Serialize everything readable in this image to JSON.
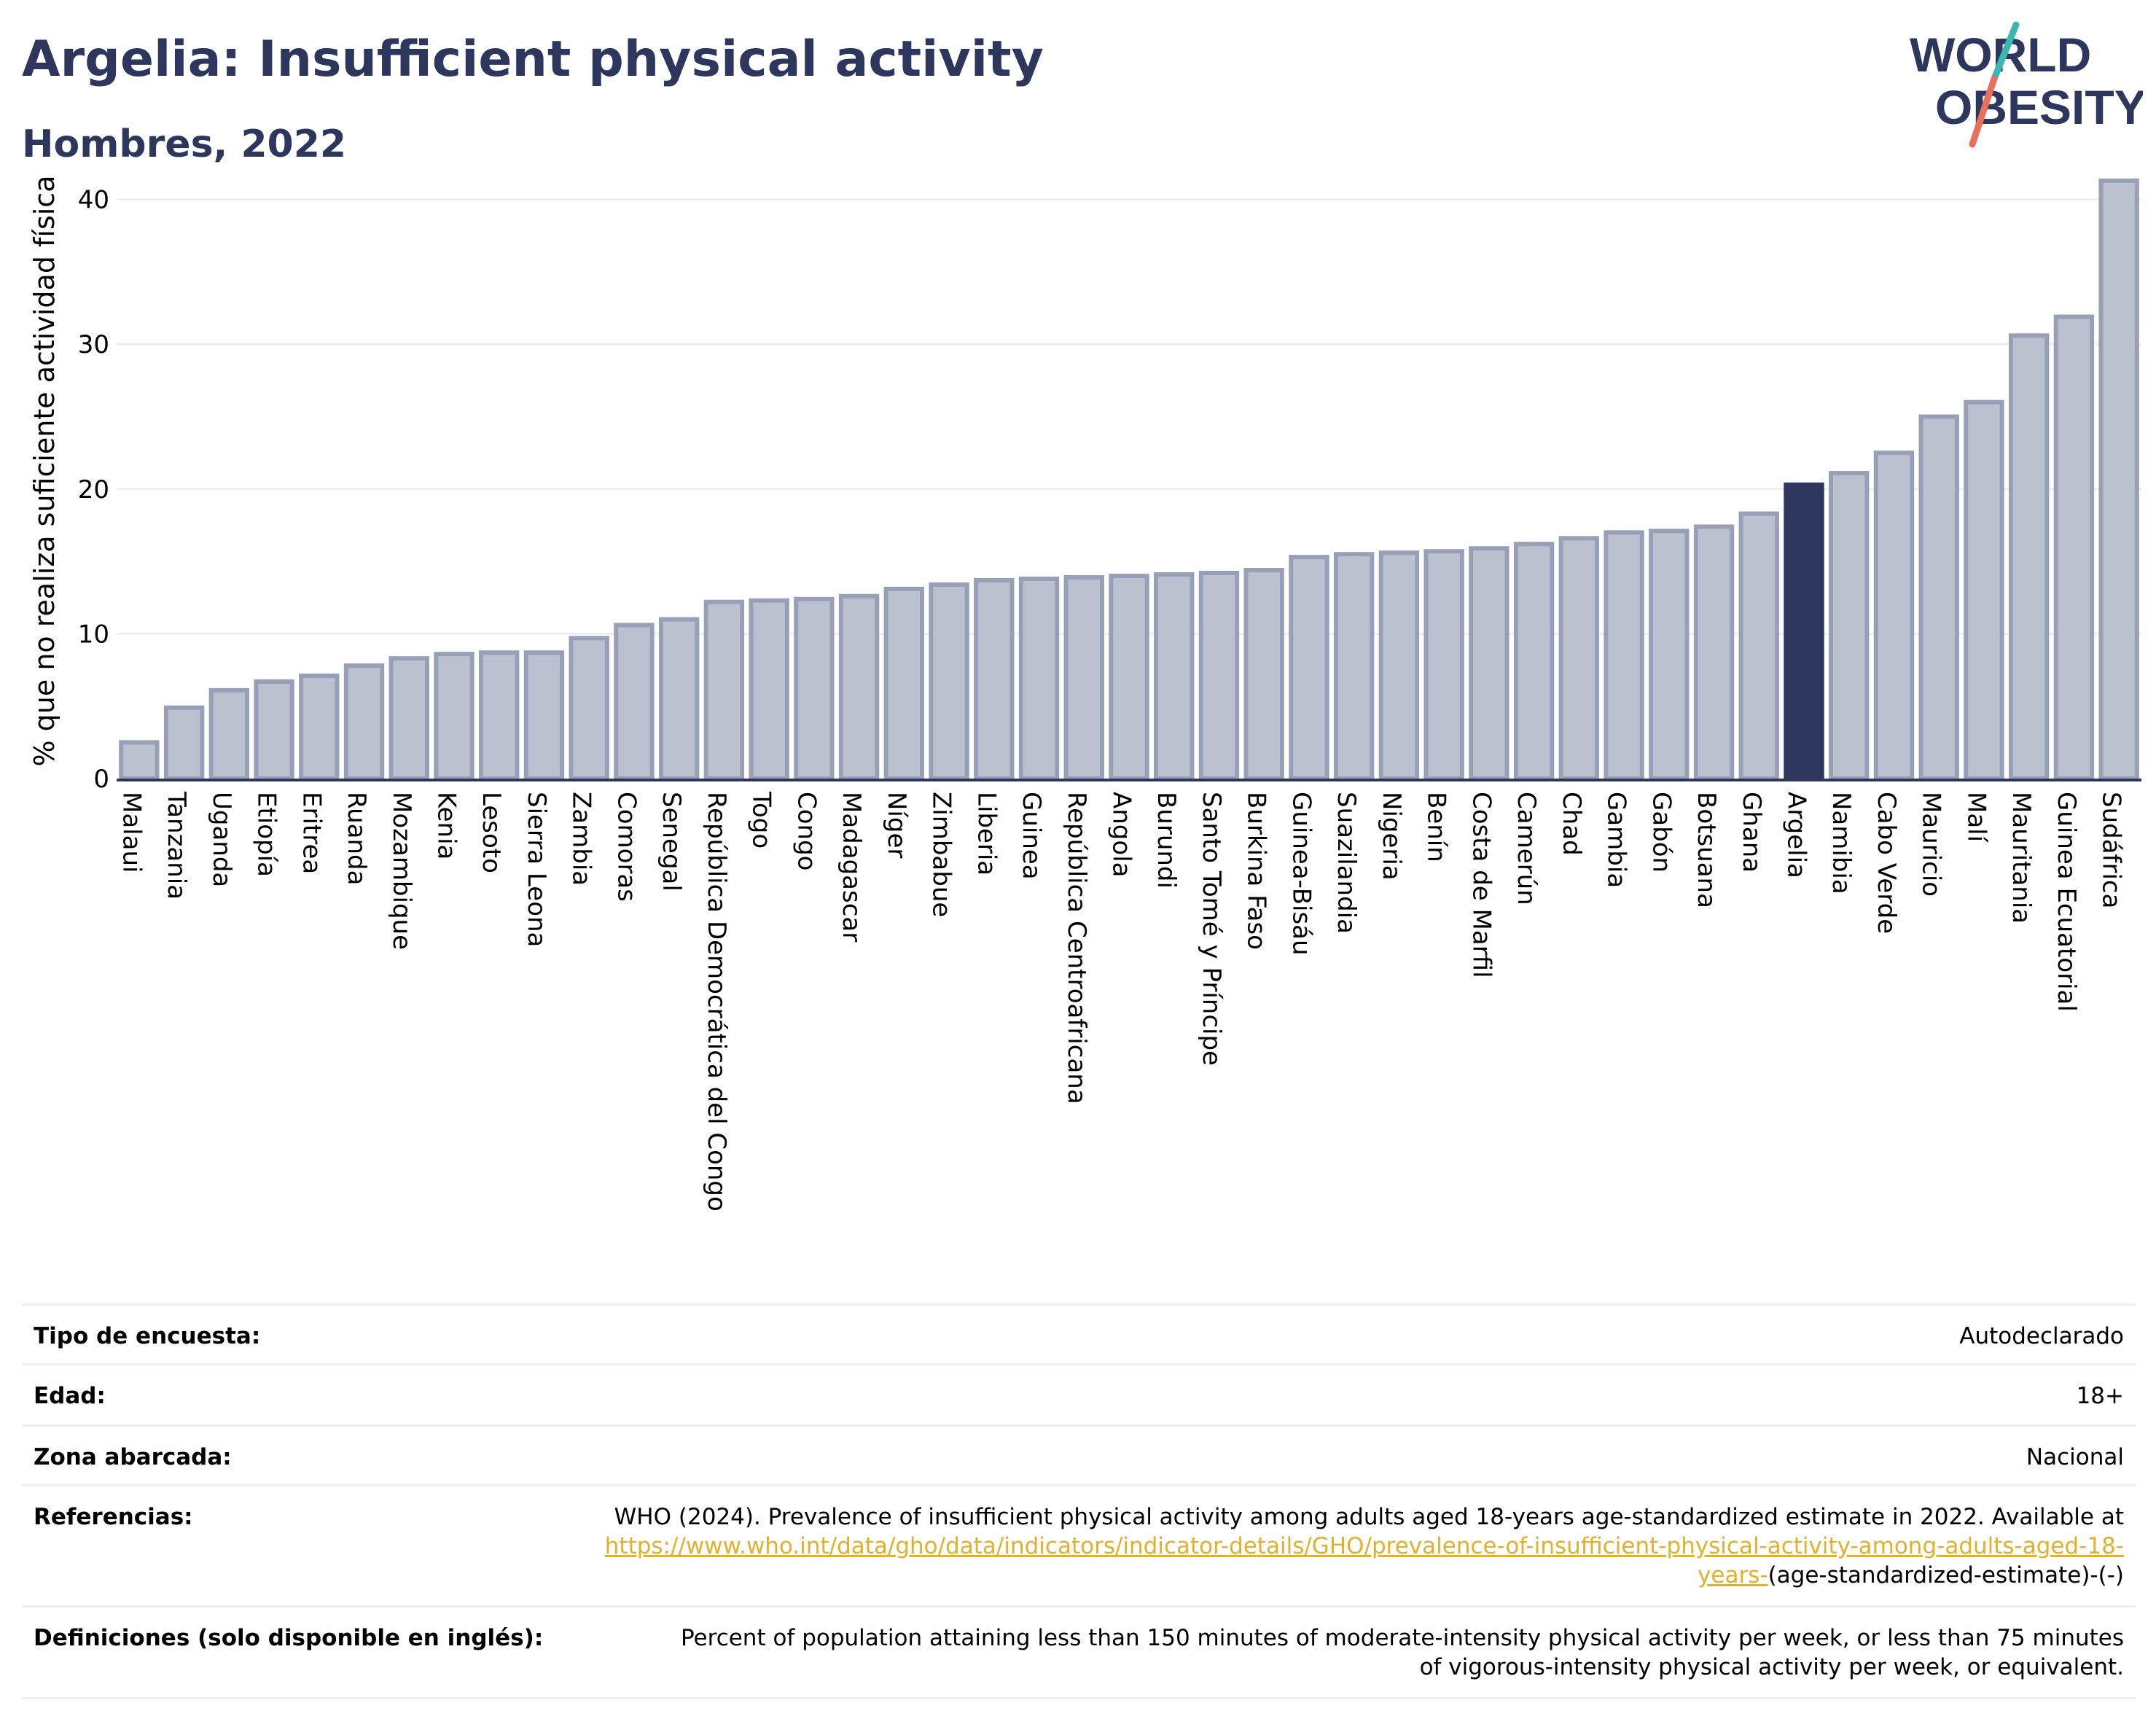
{
  "header": {
    "title": "Argelia: Insufficient physical activity",
    "subtitle": "Hombres, 2022"
  },
  "logo": {
    "line1": "WORLD",
    "line2": "OBESITY",
    "colors": {
      "text": "#2d375e",
      "slash_teal": "#3db8b0",
      "slash_coral": "#e8705d"
    }
  },
  "colors": {
    "bar_fill": "#bcc1cf",
    "bar_stroke": "#98a0b8",
    "highlight": "#2d375e",
    "grid": "#eeeeee",
    "axis": "#2d375e",
    "link": "#e1b12c"
  },
  "chart_data": {
    "type": "bar",
    "title": "Argelia: Insufficient physical activity",
    "subtitle": "Hombres, 2022",
    "xlabel": "",
    "ylabel": "% que no realiza suficiente actividad física",
    "ylim": [
      0,
      42.5
    ],
    "yticks": [
      0,
      10,
      20,
      30,
      40
    ],
    "grid": true,
    "highlight": "Argelia",
    "categories": [
      "Malaui",
      "Tanzania",
      "Uganda",
      "Etiopía",
      "Eritrea",
      "Ruanda",
      "Mozambique",
      "Kenia",
      "Lesoto",
      "Sierra Leona",
      "Zambia",
      "Comoras",
      "Senegal",
      "República Democrática del Congo",
      "Togo",
      "Congo",
      "Madagascar",
      "Níger",
      "Zimbabue",
      "Liberia",
      "Guinea",
      "República Centroafricana",
      "Angola",
      "Burundi",
      "Santo Tomé y Príncipe",
      "Burkina Faso",
      "Guinea-Bisáu",
      "Suazilandia",
      "Nigeria",
      "Benín",
      "Costa de Marfil",
      "Camerún",
      "Chad",
      "Gambia",
      "Gabón",
      "Botsuana",
      "Ghana",
      "Argelia",
      "Namibia",
      "Cabo Verde",
      "Mauricio",
      "Malí",
      "Mauritania",
      "Guinea Ecuatorial",
      "Sudáfrica"
    ],
    "values": [
      2.5,
      4.9,
      6.1,
      6.7,
      7.1,
      7.8,
      8.3,
      8.6,
      8.7,
      8.7,
      9.7,
      10.6,
      11.0,
      12.2,
      12.3,
      12.4,
      12.6,
      13.1,
      13.4,
      13.7,
      13.8,
      13.9,
      14.0,
      14.1,
      14.2,
      14.4,
      15.3,
      15.5,
      15.6,
      15.7,
      15.9,
      16.2,
      16.6,
      17.0,
      17.1,
      17.4,
      18.3,
      20.3,
      21.1,
      22.5,
      25.0,
      26.0,
      30.6,
      31.9,
      41.3
    ]
  },
  "info": {
    "survey_label": "Tipo de encuesta:",
    "survey_value": "Autodeclarado",
    "age_label": "Edad:",
    "age_value": "18+",
    "area_label": "Zona abarcada:",
    "area_value": "Nacional",
    "refs_label": "Referencias:",
    "refs_text": "WHO (2024). Prevalence of insufficient physical activity among adults aged 18-years age-standardized estimate in 2022. Available at",
    "refs_link": "https://www.who.int/data/gho/data/indicators/indicator-details/GHO/prevalence-of-insufficient-physical-activity-among-adults-aged-18-years-",
    "refs_tail": "(age-standardized-estimate)-(-)",
    "defs_label": "Definiciones (solo disponible en inglés):",
    "defs_text": "Percent of population attaining less than 150 minutes of moderate-intensity physical activity per week, or less than 75 minutes of vigorous-intensity physical activity per week, or equivalent."
  }
}
